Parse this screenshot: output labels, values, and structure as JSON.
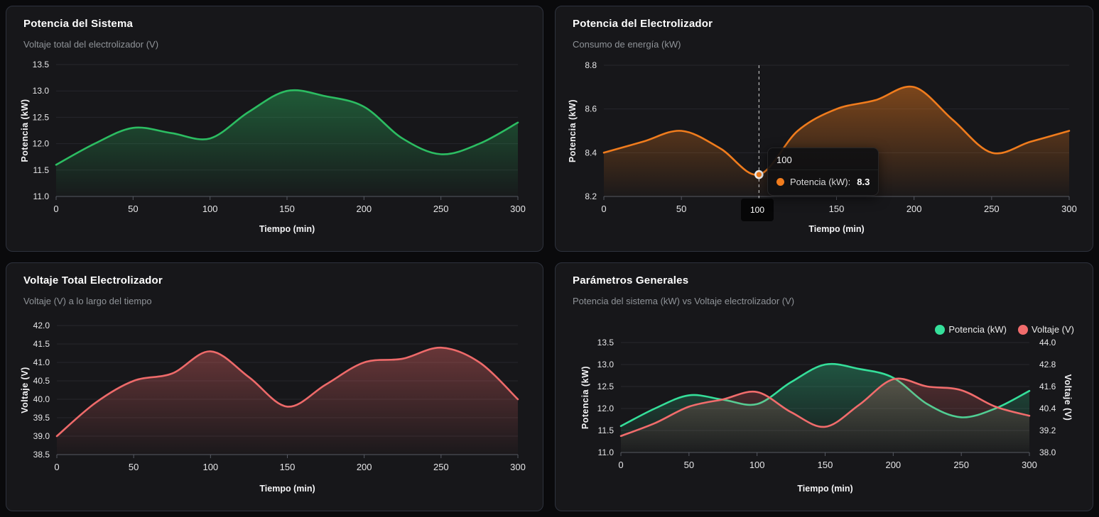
{
  "panels": [
    {
      "title": "Potencia del Sistema",
      "subtitle": "Voltaje total del electrolizador (V)"
    },
    {
      "title": "Potencia del Electrolizador",
      "subtitle": "Consumo de energía (kW)",
      "tooltip": {
        "header": "100",
        "series_label": "Potencia (kW):",
        "value": "8.3",
        "axis_badge": "100"
      }
    },
    {
      "title": "Voltaje Total Electrolizador",
      "subtitle": "Voltaje (V) a lo largo del tiempo"
    },
    {
      "title": "Parámetros Generales",
      "subtitle": "Potencia del sistema (kW) vs Voltaje electrolizador (V)",
      "legend": [
        {
          "label": "Potencia (kW)",
          "color": "#35df9a"
        },
        {
          "label": "Voltaje (V)",
          "color": "#f16c6c"
        }
      ]
    }
  ],
  "chart_data": [
    {
      "type": "area",
      "title": "Potencia del Sistema",
      "xlabel": "Tiempo (min)",
      "ylabel": "Potencia (kW)",
      "x": [
        0,
        25,
        50,
        75,
        100,
        125,
        150,
        175,
        200,
        225,
        250,
        275,
        300
      ],
      "x_ticks": [
        0,
        50,
        100,
        150,
        200,
        250,
        300
      ],
      "x_tick_labels": [
        "0",
        "50",
        "100",
        "150",
        "200",
        "250",
        "300"
      ],
      "ylim": [
        11.0,
        13.5
      ],
      "y_ticks": [
        11.0,
        11.5,
        12.0,
        12.5,
        13.0,
        13.5
      ],
      "y_tick_labels": [
        "11.0",
        "11.5",
        "12.0",
        "12.5",
        "13.0",
        "13.5"
      ],
      "grid": true,
      "series": [
        {
          "name": "Potencia (kW)",
          "color": "#2cbd62",
          "values": [
            11.6,
            12.0,
            12.3,
            12.2,
            12.1,
            12.6,
            13.0,
            12.9,
            12.7,
            12.1,
            11.8,
            12.0,
            12.4
          ]
        }
      ]
    },
    {
      "type": "area",
      "title": "Potencia del Electrolizador",
      "xlabel": "Tiempo (min)",
      "ylabel": "Potencia (kW)",
      "x": [
        0,
        25,
        50,
        75,
        100,
        125,
        150,
        175,
        200,
        225,
        250,
        275,
        300
      ],
      "x_ticks": [
        0,
        50,
        100,
        150,
        200,
        250,
        300
      ],
      "x_tick_labels": [
        "0",
        "50",
        "100",
        "150",
        "200",
        "250",
        "300"
      ],
      "ylim": [
        8.2,
        8.8
      ],
      "y_ticks": [
        8.2,
        8.4,
        8.6,
        8.8
      ],
      "y_tick_labels": [
        "8.2",
        "8.4",
        "8.6",
        "8.8"
      ],
      "grid": true,
      "series": [
        {
          "name": "Potencia (kW)",
          "color": "#f07c1d",
          "values": [
            8.4,
            8.45,
            8.5,
            8.42,
            8.3,
            8.5,
            8.6,
            8.64,
            8.7,
            8.55,
            8.4,
            8.45,
            8.5
          ]
        }
      ],
      "crosshair": {
        "x": 100,
        "value": 8.3
      }
    },
    {
      "type": "area",
      "title": "Voltaje Total Electrolizador",
      "xlabel": "Tiempo (min)",
      "ylabel": "Voltaje (V)",
      "x": [
        0,
        25,
        50,
        75,
        100,
        125,
        150,
        175,
        200,
        225,
        250,
        275,
        300
      ],
      "x_ticks": [
        0,
        50,
        100,
        150,
        200,
        250,
        300
      ],
      "x_tick_labels": [
        "0",
        "50",
        "100",
        "150",
        "200",
        "250",
        "300"
      ],
      "ylim": [
        38.5,
        42.0
      ],
      "y_ticks": [
        38.5,
        39.0,
        39.5,
        40.0,
        40.5,
        41.0,
        41.5,
        42.0
      ],
      "y_tick_labels": [
        "38.5",
        "39.0",
        "39.5",
        "40.0",
        "40.5",
        "41.0",
        "41.5",
        "42.0"
      ],
      "grid": true,
      "series": [
        {
          "name": "Voltaje (V)",
          "color": "#ee6a6a",
          "values": [
            39.0,
            39.9,
            40.5,
            40.7,
            41.3,
            40.6,
            39.8,
            40.4,
            41.0,
            41.1,
            41.4,
            41.0,
            40.0
          ]
        }
      ]
    },
    {
      "type": "area",
      "title": "Parámetros Generales",
      "xlabel": "Tiempo (min)",
      "ylabel": "Potencia (kW)",
      "ylabel_right": "Voltaje (V)",
      "legend_position": "top-right",
      "x": [
        0,
        25,
        50,
        75,
        100,
        125,
        150,
        175,
        200,
        225,
        250,
        275,
        300
      ],
      "x_ticks": [
        0,
        50,
        100,
        150,
        200,
        250,
        300
      ],
      "x_tick_labels": [
        "0",
        "50",
        "100",
        "150",
        "200",
        "250",
        "300"
      ],
      "ylim": [
        11.0,
        13.5
      ],
      "y_ticks": [
        11.0,
        11.5,
        12.0,
        12.5,
        13.0,
        13.5
      ],
      "y_tick_labels": [
        "11.0",
        "11.5",
        "12.0",
        "12.5",
        "13.0",
        "13.5"
      ],
      "ylim_right": [
        38.0,
        44.0
      ],
      "y_ticks_right": [
        38.0,
        39.2,
        40.4,
        41.6,
        42.8,
        44.0
      ],
      "y_tick_labels_right": [
        "38.0",
        "39.2",
        "40.4",
        "41.6",
        "42.8",
        "44.0"
      ],
      "grid": true,
      "series": [
        {
          "name": "Potencia (kW)",
          "color": "#35df9a",
          "axis": "left",
          "values": [
            11.6,
            12.0,
            12.3,
            12.2,
            12.1,
            12.6,
            13.0,
            12.9,
            12.7,
            12.1,
            11.8,
            12.0,
            12.4
          ]
        },
        {
          "name": "Voltaje (V)",
          "color": "#f16c6c",
          "axis": "right",
          "values": [
            38.9,
            39.6,
            40.5,
            40.9,
            41.3,
            40.2,
            39.4,
            40.6,
            42.0,
            41.6,
            41.4,
            40.5,
            40.0
          ]
        }
      ]
    }
  ]
}
